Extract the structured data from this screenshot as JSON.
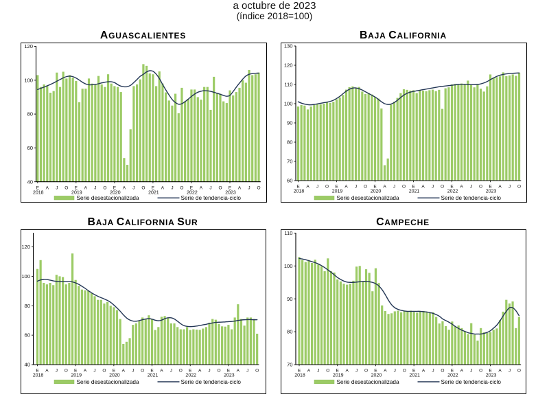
{
  "header": {
    "line1": "a octubre de 2023",
    "line2": "(índice 2018=100)"
  },
  "legend": {
    "bar_label": "Serie desestacionalizada",
    "line_label": "Serie de tendencia-ciclo"
  },
  "colors": {
    "bar_fill": "#9ccb66",
    "bar_edge": "#8abd52",
    "trend_line": "#233655",
    "axis": "#000000",
    "text": "#111111"
  },
  "x_axis": {
    "month_letters": [
      "E",
      "A",
      "J",
      "O"
    ],
    "years": [
      "2018",
      "2019",
      "2020",
      "2021",
      "2022",
      "2023"
    ],
    "n_months": 70,
    "x_start": "2018-01",
    "x_end": "2023-10"
  },
  "chart_data": [
    {
      "type": "bar",
      "title": "Aguascalientes",
      "ylim": [
        40,
        122
      ],
      "yticks": [
        40,
        60,
        80,
        100,
        120
      ],
      "series": [
        {
          "name": "Serie desestacionalizada",
          "kind": "bar",
          "values": [
            103,
            96,
            97.5,
            96.5,
            92.6,
            93.6,
            104.5,
            96,
            105,
            101,
            103,
            101.5,
            99.5,
            87,
            95,
            95,
            101,
            98,
            97.5,
            102.5,
            97.5,
            96,
            103.5,
            98,
            96.5,
            96,
            93,
            54,
            50,
            71,
            96.5,
            97.5,
            100.5,
            109.5,
            108.5,
            104,
            103.5,
            96.5,
            105.2,
            98,
            92.8,
            88,
            85,
            92,
            80.5,
            95.5,
            87.5,
            89,
            94.5,
            94.5,
            90,
            88.5,
            96,
            96,
            82.5,
            102,
            92.5,
            92,
            87.5,
            86.5,
            94,
            91,
            93,
            95.5,
            100,
            98.5,
            106,
            103,
            103.5,
            104.5
          ]
        },
        {
          "name": "Serie de tendencia-ciclo",
          "kind": "line",
          "values": [
            94.5,
            95.2,
            95.9,
            96.7,
            97.5,
            98.4,
            99.4,
            100.4,
            101.4,
            102.1,
            102.4,
            102.1,
            101.3,
            100.1,
            98.8,
            97.8,
            97.3,
            97.3,
            97.5,
            97.9,
            98.4,
            98.8,
            99.1,
            99.1,
            98.6,
            97.4,
            96.5,
            96.1,
            96.2,
            97.0,
            98.6,
            100.4,
            102.3,
            103.5,
            104.9,
            105.6,
            105.3,
            103.6,
            101.0,
            97.5,
            94.3,
            91.3,
            88.6,
            86.8,
            85.8,
            86.1,
            87.3,
            88.8,
            90.4,
            91.8,
            92.9,
            93.5,
            93.8,
            93.7,
            93.4,
            92.9,
            92.3,
            91.7,
            91.0,
            90.5,
            91.0,
            93.3,
            95.9,
            98.3,
            100.6,
            102.5,
            103.5,
            103.9,
            104.1,
            104.2
          ]
        }
      ]
    },
    {
      "type": "bar",
      "title": "Baja California",
      "ylim": [
        60,
        131
      ],
      "yticks": [
        60,
        70,
        80,
        90,
        100,
        110,
        120,
        130
      ],
      "series": [
        {
          "name": "Serie desestacionalizada",
          "kind": "bar",
          "values": [
            98.5,
            99.3,
            99,
            97,
            98.5,
            99.3,
            100,
            99.6,
            100,
            101,
            100.4,
            101,
            102.3,
            103.2,
            104.5,
            107.3,
            108.6,
            109,
            108,
            108.7,
            106.3,
            105,
            105.5,
            104.8,
            103.4,
            102.7,
            97.5,
            68,
            71.5,
            99.5,
            101,
            103,
            105.5,
            107.5,
            107.2,
            106.8,
            107,
            105.5,
            107,
            106.8,
            106.5,
            107,
            107.3,
            106.5,
            107.2,
            97.3,
            108,
            108.5,
            110,
            110.3,
            110,
            110.5,
            110,
            112,
            110,
            108.5,
            110,
            107.8,
            106.3,
            109,
            115.2,
            113.5,
            113.8,
            114.2,
            116.3,
            114.3,
            114.7,
            115.2,
            114.5,
            116.1
          ]
        },
        {
          "name": "Serie de tendencia-ciclo",
          "kind": "line",
          "values": [
            101,
            100.3,
            99.8,
            99.5,
            99.4,
            99.6,
            99.9,
            100.2,
            100.5,
            100.8,
            101.2,
            101.8,
            102.7,
            103.8,
            105.2,
            106.5,
            107.5,
            108.1,
            108.2,
            107.8,
            107.1,
            106.2,
            105.3,
            104.4,
            103.5,
            102.3,
            101.0,
            100.0,
            99.6,
            99.8,
            100.6,
            101.8,
            103.2,
            104.5,
            105.4,
            106.0,
            106.4,
            106.7,
            107.0,
            107.3,
            107.6,
            107.9,
            108.2,
            108.5,
            108.8,
            109.0,
            109.2,
            109.4,
            109.6,
            109.8,
            110.0,
            110.1,
            110.1,
            110.0,
            109.9,
            109.9,
            110.0,
            110.3,
            110.8,
            111.5,
            112.5,
            113.4,
            114.2,
            114.8,
            115.2,
            115.5,
            115.7,
            115.8,
            115.9,
            116.0
          ]
        }
      ]
    },
    {
      "type": "bar",
      "title": "Baja California Sur",
      "ylim": [
        40,
        131
      ],
      "yticks": [
        40,
        60,
        80,
        100,
        120
      ],
      "series": [
        {
          "name": "Serie desestacionalizada",
          "kind": "bar",
          "values": [
            105,
            111,
            95.5,
            94.5,
            95.5,
            94,
            101,
            100,
            99.5,
            94.5,
            95.5,
            115.5,
            97.5,
            93.5,
            91,
            90.5,
            90,
            88.5,
            86.5,
            84,
            84,
            81.5,
            82.5,
            80,
            79,
            77,
            71,
            54,
            55.5,
            58,
            67,
            68,
            69.5,
            72,
            71,
            73.5,
            71,
            63.5,
            65.5,
            72.5,
            73,
            71.5,
            68,
            68,
            65.5,
            64,
            64,
            65.5,
            63.5,
            64,
            63.8,
            63.6,
            64.5,
            65.5,
            68.5,
            71,
            70.5,
            67.5,
            66,
            65.8,
            67,
            64,
            72,
            81,
            71,
            66.5,
            72,
            72,
            71,
            61
          ]
        },
        {
          "name": "Serie de tendencia-ciclo",
          "kind": "line",
          "values": [
            96.7,
            97.5,
            97.9,
            97.8,
            97.4,
            96.9,
            96.6,
            96.4,
            96.4,
            96.4,
            96.4,
            96.2,
            95.5,
            94.5,
            93.2,
            91.8,
            90.2,
            88.8,
            87.5,
            86.4,
            85.5,
            84.6,
            83.6,
            82.3,
            80.5,
            78.5,
            76.3,
            73.8,
            71.7,
            70.3,
            69.6,
            69.5,
            69.9,
            70.5,
            71.0,
            71.2,
            70.9,
            70.2,
            69.8,
            70.2,
            71.2,
            71.8,
            71.8,
            71.0,
            69.5,
            67.8,
            66.5,
            66.0,
            65.8,
            65.9,
            66.2,
            66.6,
            67.0,
            67.4,
            67.9,
            68.3,
            68.7,
            68.8,
            68.9,
            69.0,
            69.2,
            69.3,
            69.6,
            70.0,
            70.3,
            70.5,
            70.6,
            70.6,
            70.5,
            70.5
          ]
        }
      ]
    },
    {
      "type": "bar",
      "title": "Campeche",
      "ylim": [
        70,
        110.8
      ],
      "yticks": [
        70,
        80,
        90,
        100,
        110
      ],
      "series": [
        {
          "name": "Serie desestacionalizada",
          "kind": "bar",
          "values": [
            102.7,
            101.8,
            101.2,
            101.8,
            100.9,
            101.9,
            100.4,
            99.9,
            98.4,
            102.3,
            98.4,
            98.0,
            95.9,
            95.3,
            94.6,
            94.3,
            94.6,
            95.5,
            99.8,
            100.0,
            95.2,
            99.0,
            97.9,
            92.3,
            99.3,
            94.8,
            88.0,
            86.3,
            85.4,
            85.6,
            86.2,
            86.4,
            85.9,
            86.3,
            86.1,
            86.4,
            86.0,
            85.8,
            86.1,
            86.3,
            85.9,
            85.7,
            85.9,
            84.5,
            82.5,
            83.2,
            81.7,
            80.6,
            83.1,
            81.6,
            81.9,
            81.1,
            80.1,
            79.3,
            82.6,
            79.1,
            77.3,
            81.1,
            79.8,
            79.6,
            79.9,
            80.6,
            81.0,
            83.5,
            86.1,
            89.7,
            88.6,
            89.2,
            81.1,
            84.5
          ]
        },
        {
          "name": "Serie de tendencia-ciclo",
          "kind": "line",
          "values": [
            102.3,
            102.1,
            101.9,
            101.6,
            101.3,
            101.0,
            100.6,
            100.1,
            99.5,
            98.8,
            98.1,
            97.3,
            96.5,
            95.9,
            95.4,
            95.1,
            95.0,
            95.0,
            95.1,
            95.2,
            95.3,
            95.3,
            95.2,
            95.0,
            94.6,
            93.9,
            92.8,
            91.3,
            89.6,
            88.2,
            87.3,
            86.8,
            86.5,
            86.3,
            86.2,
            86.2,
            86.2,
            86.2,
            86.2,
            86.1,
            86.0,
            85.8,
            85.6,
            85.2,
            84.7,
            83.9,
            83.4,
            82.9,
            82.3,
            81.6,
            81.0,
            80.5,
            80.1,
            79.7,
            79.5,
            79.3,
            79.3,
            79.3,
            79.5,
            79.8,
            80.3,
            81.1,
            82.0,
            83.3,
            84.8,
            86.2,
            87.3,
            87.3,
            86.4,
            84.9
          ]
        }
      ]
    }
  ]
}
